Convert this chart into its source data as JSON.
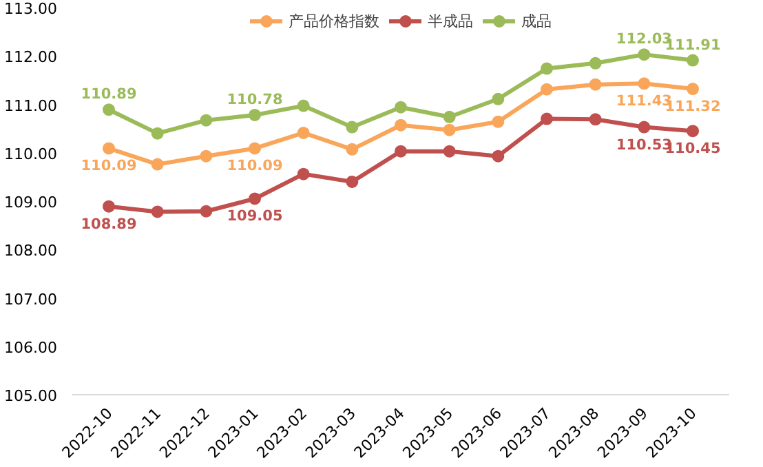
{
  "chart_data": {
    "type": "line",
    "legend": "top",
    "marker": "circle",
    "grid": false,
    "categories": [
      "2022-10",
      "2022-11",
      "2022-12",
      "2023-01",
      "2023-02",
      "2023-03",
      "2023-04",
      "2023-05",
      "2023-06",
      "2023-07",
      "2023-08",
      "2023-09",
      "2023-10"
    ],
    "ylim": [
      105,
      113
    ],
    "yticks": [
      {
        "value": 105,
        "label": "105.00"
      },
      {
        "value": 106,
        "label": "106.00"
      },
      {
        "value": 107,
        "label": "107.00"
      },
      {
        "value": 108,
        "label": "108.00"
      },
      {
        "value": 109,
        "label": "109.00"
      },
      {
        "value": 110,
        "label": "110.00"
      },
      {
        "value": 111,
        "label": "111.00"
      },
      {
        "value": 112,
        "label": "112.00"
      },
      {
        "value": 113,
        "label": "113.00"
      }
    ],
    "series": [
      {
        "name": "产品价格指数",
        "color": "#f9a65a",
        "values": [
          110.09,
          109.76,
          109.93,
          110.09,
          110.41,
          110.07,
          110.57,
          110.47,
          110.64,
          111.31,
          111.41,
          111.43,
          111.32
        ],
        "value_labels": [
          "110.09",
          null,
          null,
          "110.09",
          null,
          null,
          null,
          null,
          null,
          null,
          null,
          "111.43",
          "111.32"
        ]
      },
      {
        "name": "半成品",
        "color": "#c0504d",
        "values": [
          108.89,
          108.78,
          108.79,
          109.05,
          109.56,
          109.4,
          110.03,
          110.03,
          109.93,
          110.7,
          110.69,
          110.53,
          110.45
        ],
        "value_labels": [
          "108.89",
          null,
          null,
          "109.05",
          null,
          null,
          null,
          null,
          null,
          null,
          null,
          "110.53",
          "110.45"
        ]
      },
      {
        "name": "成品",
        "color": "#9bbb59",
        "values": [
          110.89,
          110.4,
          110.67,
          110.78,
          110.97,
          110.53,
          110.94,
          110.74,
          111.11,
          111.74,
          111.85,
          112.03,
          111.91
        ],
        "value_labels": [
          "110.89",
          null,
          null,
          "110.78",
          null,
          null,
          null,
          null,
          null,
          null,
          null,
          "112.03",
          "111.91"
        ]
      }
    ]
  }
}
